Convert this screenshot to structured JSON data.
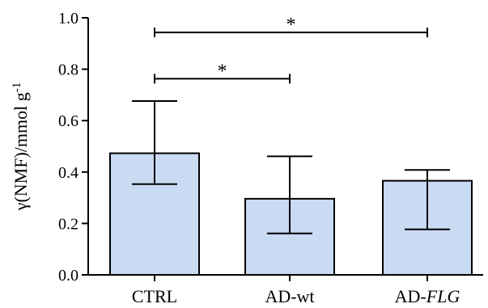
{
  "chart_data": {
    "type": "bar",
    "categories": [
      "CTRL",
      "AD-wt",
      "AD-FLG"
    ],
    "category_label_parts": [
      [
        {
          "text": "CTRL",
          "italic": false
        }
      ],
      [
        {
          "text": "AD-wt",
          "italic": false
        }
      ],
      [
        {
          "text": "AD-",
          "italic": false
        },
        {
          "text": "FLG",
          "italic": true
        }
      ]
    ],
    "values": [
      0.473,
      0.296,
      0.366
    ],
    "error_bars": {
      "lower": [
        0.353,
        0.161,
        0.177
      ],
      "upper": [
        0.676,
        0.461,
        0.408
      ]
    },
    "ylabel_parts": [
      {
        "text": "γ(NMF)/mmol g",
        "superscript": false
      },
      {
        "text": "-1",
        "superscript": true
      }
    ],
    "ylim": [
      0,
      1.0
    ],
    "yticks": [
      0.0,
      0.2,
      0.4,
      0.6,
      0.8,
      1.0
    ],
    "ytick_labels": [
      "0.0",
      "0.2",
      "0.4",
      "0.6",
      "0.8",
      "1.0"
    ],
    "significance": [
      {
        "from": "CTRL",
        "to": "AD-FLG",
        "y": 0.943,
        "label": "*"
      },
      {
        "from": "CTRL",
        "to": "AD-wt",
        "y": 0.763,
        "label": "*"
      }
    ],
    "grid": false,
    "legend": "none",
    "colors": {
      "bar_fill": "#c9daf3",
      "stroke": "#000000",
      "background": "#ffffff"
    }
  }
}
